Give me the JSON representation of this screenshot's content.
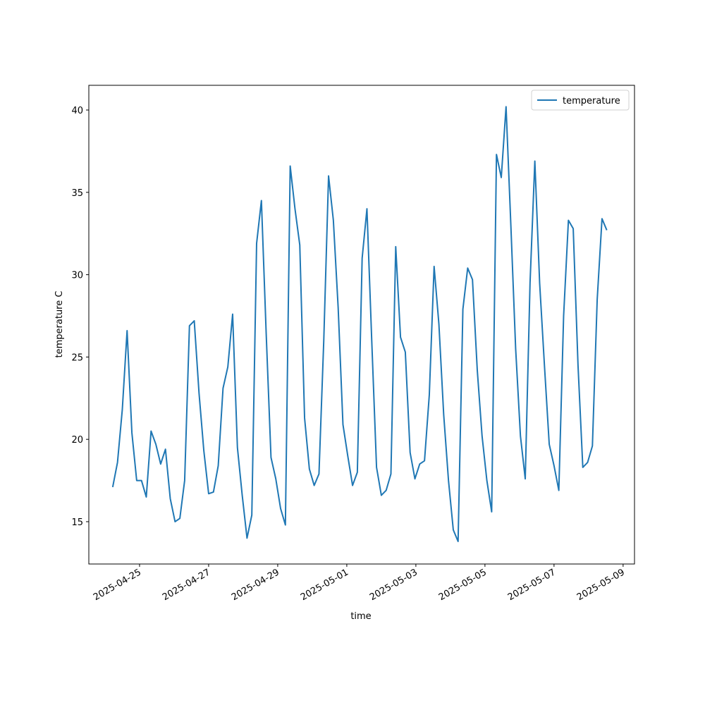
{
  "chart_data": {
    "type": "line",
    "xlabel": "time",
    "ylabel": "temperature C",
    "x": [
      "2025-04-24T05:20",
      "2025-04-24T08:40",
      "2025-04-24T12:00",
      "2025-04-24T15:20",
      "2025-04-24T18:40",
      "2025-04-24T22:00",
      "2025-04-25T01:20",
      "2025-04-25T04:40",
      "2025-04-25T08:00",
      "2025-04-25T11:20",
      "2025-04-25T14:40",
      "2025-04-25T18:00",
      "2025-04-25T21:20",
      "2025-04-26T00:40",
      "2025-04-26T04:00",
      "2025-04-26T07:20",
      "2025-04-26T10:40",
      "2025-04-26T14:00",
      "2025-04-26T17:20",
      "2025-04-26T20:40",
      "2025-04-27T00:00",
      "2025-04-27T03:20",
      "2025-04-27T06:40",
      "2025-04-27T10:00",
      "2025-04-27T13:20",
      "2025-04-27T16:40",
      "2025-04-27T20:00",
      "2025-04-27T23:20",
      "2025-04-28T02:40",
      "2025-04-28T06:00",
      "2025-04-28T09:20",
      "2025-04-28T12:40",
      "2025-04-28T16:00",
      "2025-04-28T19:20",
      "2025-04-28T22:40",
      "2025-04-29T02:00",
      "2025-04-29T05:20",
      "2025-04-29T08:40",
      "2025-04-29T12:00",
      "2025-04-29T15:20",
      "2025-04-29T18:40",
      "2025-04-29T22:00",
      "2025-04-30T01:20",
      "2025-04-30T04:40",
      "2025-04-30T08:00",
      "2025-04-30T11:20",
      "2025-04-30T14:40",
      "2025-04-30T18:00",
      "2025-04-30T21:20",
      "2025-05-01T00:40",
      "2025-05-01T04:00",
      "2025-05-01T07:20",
      "2025-05-01T10:40",
      "2025-05-01T14:00",
      "2025-05-01T17:20",
      "2025-05-01T20:40",
      "2025-05-02T00:00",
      "2025-05-02T03:20",
      "2025-05-02T06:40",
      "2025-05-02T10:00",
      "2025-05-02T13:20",
      "2025-05-02T16:40",
      "2025-05-02T20:00",
      "2025-05-02T23:20",
      "2025-05-03T02:40",
      "2025-05-03T06:00",
      "2025-05-03T09:20",
      "2025-05-03T12:40",
      "2025-05-03T16:00",
      "2025-05-03T19:20",
      "2025-05-03T22:40",
      "2025-05-04T02:00",
      "2025-05-04T05:20",
      "2025-05-04T08:40",
      "2025-05-04T12:00",
      "2025-05-04T15:20",
      "2025-05-04T18:40",
      "2025-05-04T22:00",
      "2025-05-05T01:20",
      "2025-05-05T04:40",
      "2025-05-05T08:00",
      "2025-05-05T11:20",
      "2025-05-05T14:40",
      "2025-05-05T18:00",
      "2025-05-05T21:20",
      "2025-05-06T00:40",
      "2025-05-06T04:00",
      "2025-05-06T07:20",
      "2025-05-06T10:40",
      "2025-05-06T14:00",
      "2025-05-06T17:20",
      "2025-05-06T20:40",
      "2025-05-07T00:00",
      "2025-05-07T03:20",
      "2025-05-07T06:40",
      "2025-05-07T10:00",
      "2025-05-07T13:20",
      "2025-05-07T16:40",
      "2025-05-07T20:00",
      "2025-05-07T23:20",
      "2025-05-08T02:40",
      "2025-05-08T06:00",
      "2025-05-08T09:20",
      "2025-05-08T12:40"
    ],
    "series": [
      {
        "name": "temperature",
        "color": "#1f77b4",
        "values": [
          17.1,
          18.6,
          21.8,
          26.6,
          20.4,
          17.5,
          17.5,
          16.5,
          20.5,
          19.7,
          18.5,
          19.4,
          16.4,
          15.0,
          15.2,
          17.5,
          26.9,
          27.2,
          22.8,
          19.3,
          16.7,
          16.8,
          18.4,
          23.1,
          24.4,
          27.6,
          19.5,
          16.6,
          14.0,
          15.4,
          31.9,
          34.5,
          26.4,
          18.9,
          17.6,
          15.8,
          14.8,
          36.6,
          34.0,
          31.8,
          21.3,
          18.2,
          17.2,
          17.9,
          26.0,
          36.0,
          33.3,
          28.0,
          20.9,
          19.0,
          17.2,
          18.0,
          31.0,
          34.0,
          26.0,
          18.3,
          16.6,
          16.9,
          17.9,
          31.7,
          26.2,
          25.3,
          19.2,
          17.6,
          18.5,
          18.7,
          22.7,
          30.5,
          27.0,
          21.5,
          17.5,
          14.5,
          13.8,
          27.9,
          30.4,
          29.7,
          24.2,
          20.2,
          17.5,
          15.6,
          37.3,
          35.9,
          40.2,
          33.0,
          25.5,
          20.2,
          17.6,
          29.5,
          36.9,
          29.5,
          24.5,
          19.7,
          18.4,
          16.9,
          27.5,
          33.3,
          32.8,
          24.5,
          18.3,
          18.6,
          19.6,
          28.5,
          33.4,
          32.7
        ]
      }
    ],
    "xlim": [
      "2025-04-23T12:45",
      "2025-05-09T07:55"
    ],
    "xticks": [
      "2025-04-25",
      "2025-04-27",
      "2025-04-29",
      "2025-05-01",
      "2025-05-03",
      "2025-05-05",
      "2025-05-07",
      "2025-05-09"
    ],
    "ylim": [
      12.43,
      41.5
    ],
    "yticks": [
      15,
      20,
      25,
      30,
      35,
      40
    ],
    "legend": "upper right",
    "grid": false
  }
}
